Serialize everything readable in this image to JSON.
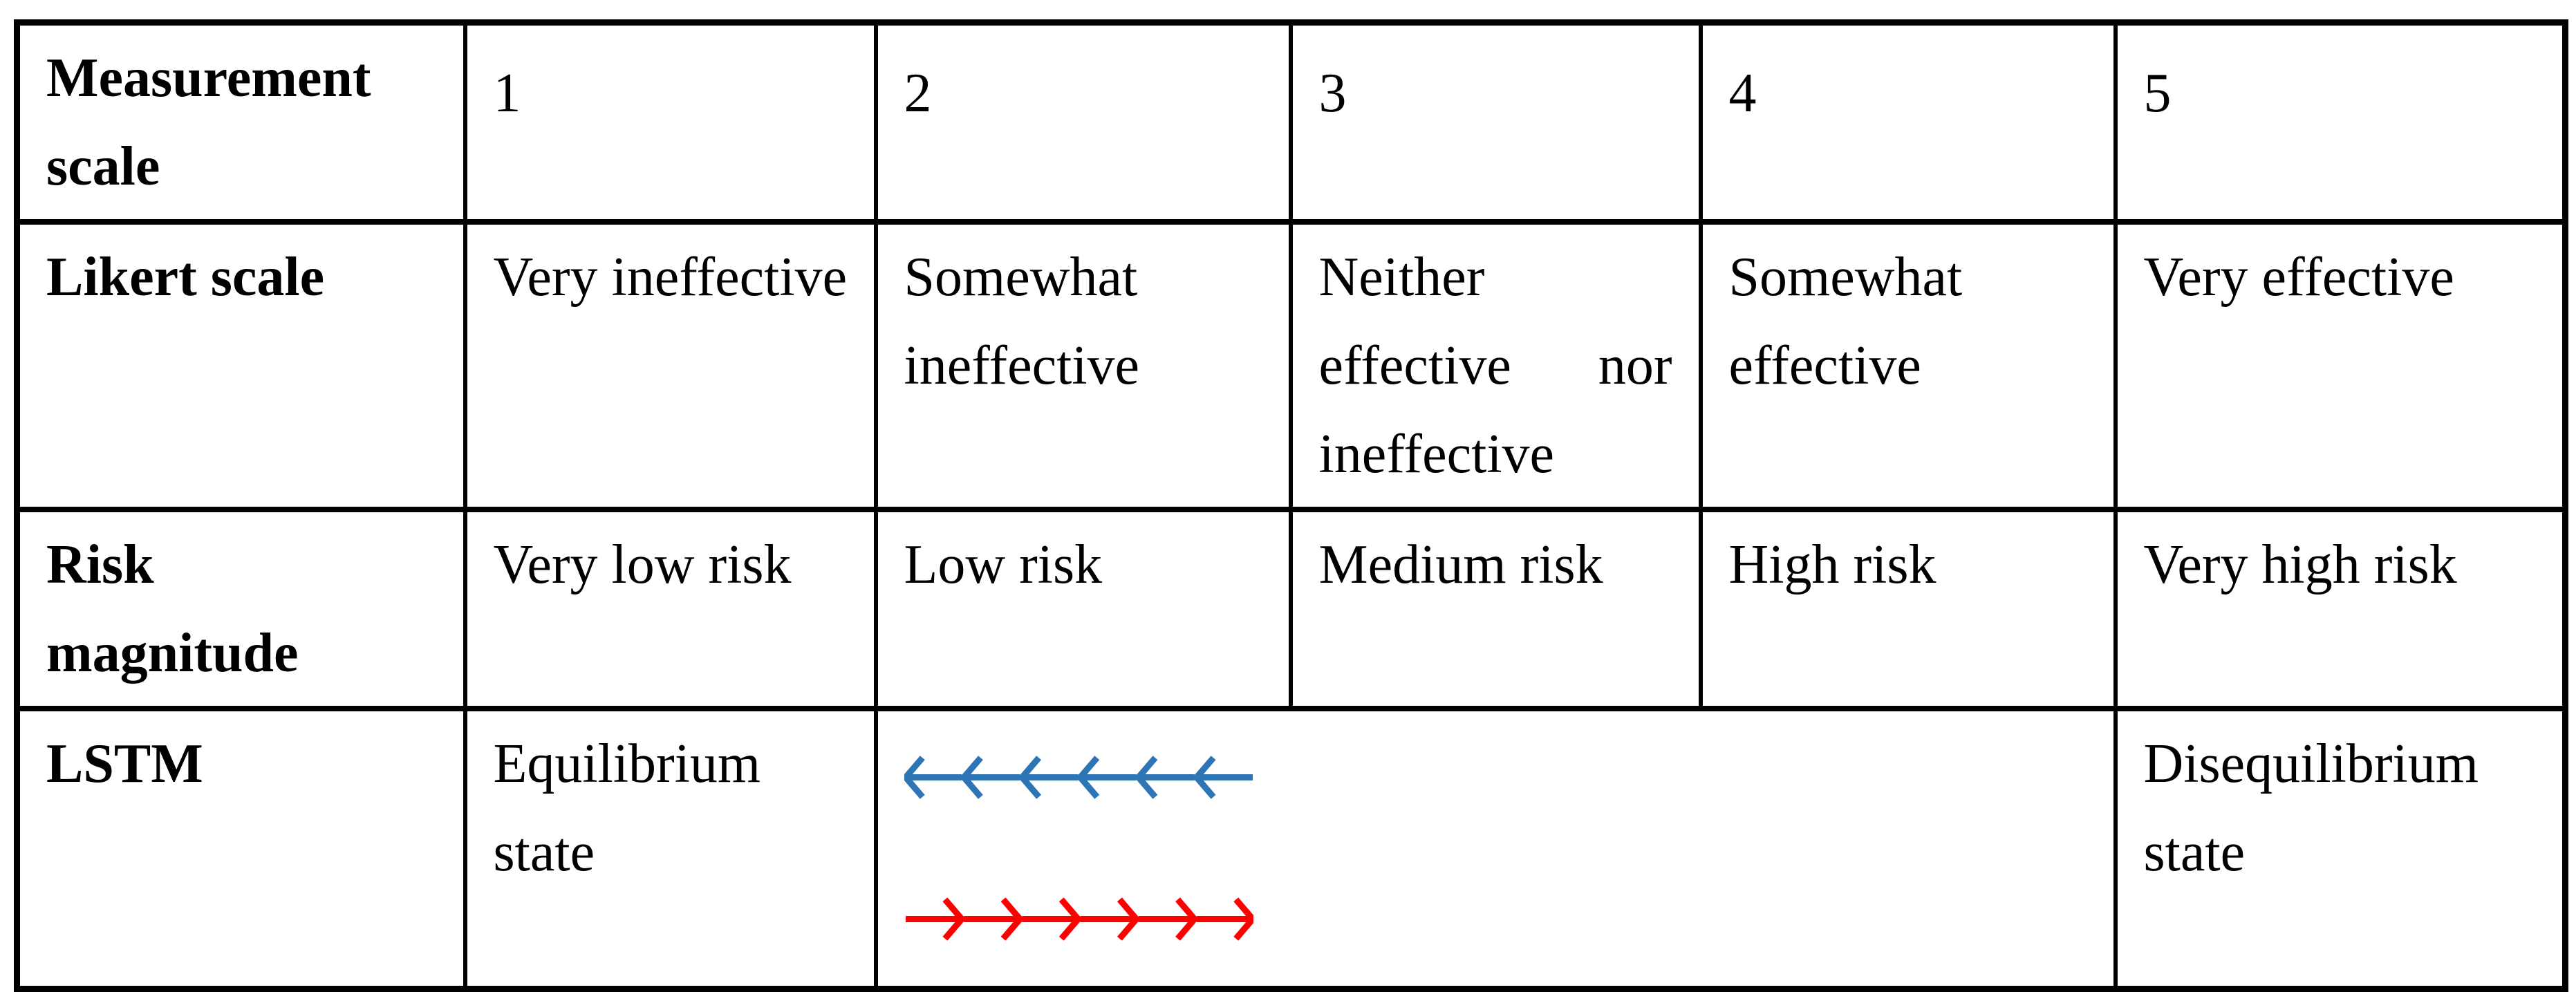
{
  "page": {
    "background": "#ffffff"
  },
  "table": {
    "border_color": "#000000",
    "columns": [
      "Measurement scale",
      "1",
      "2",
      "3",
      "4",
      "5"
    ],
    "rows": [
      {
        "header": "Likert scale",
        "cells": [
          "Very ineffective",
          "Somewhat ineffective",
          "Neither effective nor ineffective",
          "Somewhat effective",
          "Very effective"
        ]
      },
      {
        "header": "Risk magnitude",
        "cells": [
          "Very low risk",
          "Low risk",
          "Medium risk",
          "High risk",
          "Very high risk"
        ]
      },
      {
        "header": "LSTM",
        "equilibrium_label": "Equilibrium state",
        "disequilibrium_label": "Disequilibrium state",
        "arrows": {
          "blue": {
            "direction": "left",
            "count": 6,
            "color": "#2E75B6"
          },
          "red": {
            "direction": "right",
            "count": 6,
            "color": "#FF0000"
          }
        }
      }
    ]
  }
}
